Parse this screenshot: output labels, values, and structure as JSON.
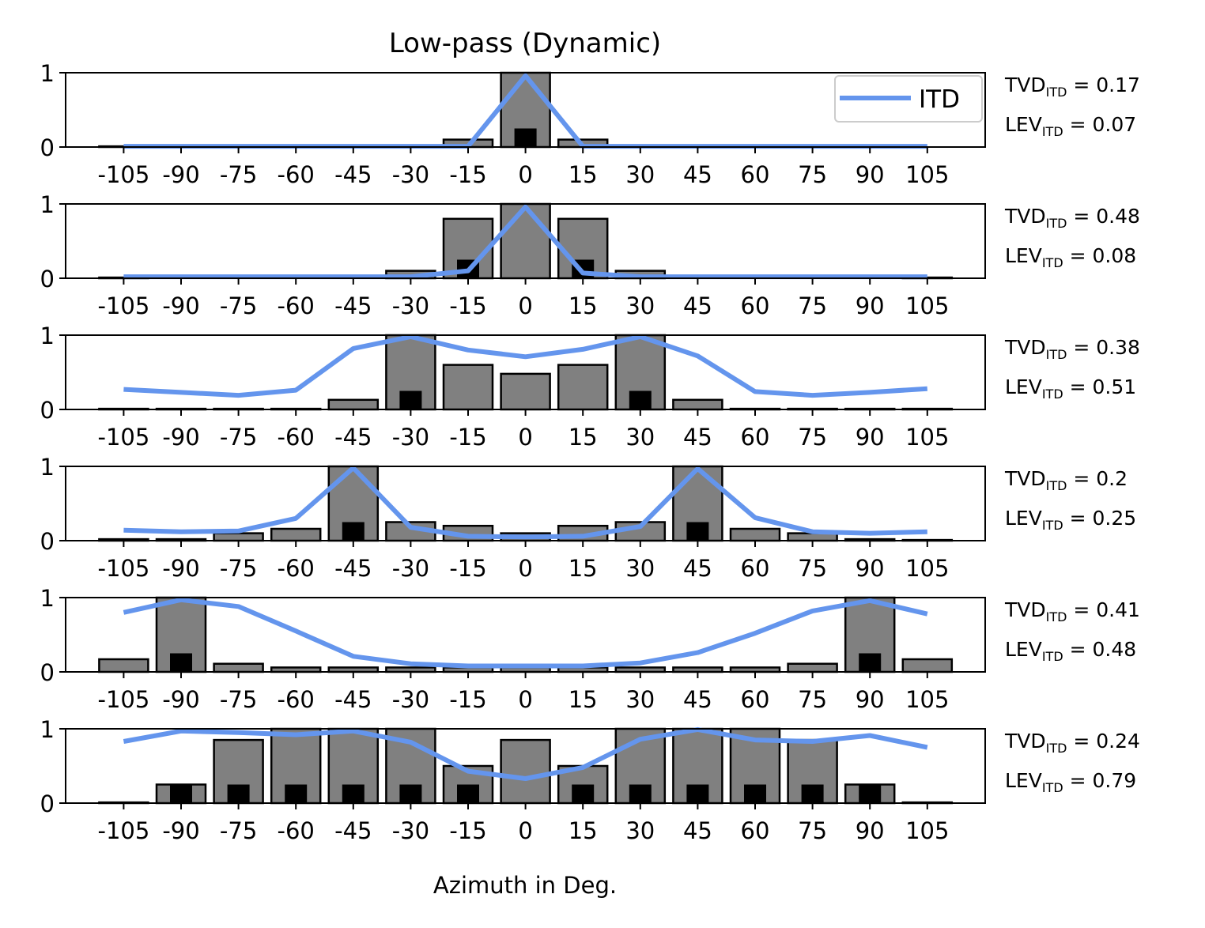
{
  "chart_data": {
    "type": "bar",
    "title": "Low-pass (Dynamic)",
    "xlabel": "Azimuth in Deg.",
    "ylabel": "",
    "ylim": [
      0,
      1
    ],
    "yticks": [
      "0",
      "1"
    ],
    "categories": [
      "-105",
      "-90",
      "-75",
      "-60",
      "-45",
      "-30",
      "-15",
      "0",
      "15",
      "30",
      "45",
      "60",
      "75",
      "90",
      "105"
    ],
    "legend": {
      "entries": [
        "ITD"
      ],
      "placement": "top-right",
      "color": "#6495ED"
    },
    "colors": {
      "bar": "#808080",
      "bar_edge": "#000000",
      "marker": "#000000",
      "line": "#6495ED"
    },
    "panels": [
      {
        "bars": [
          0.01,
          0,
          0,
          0,
          0,
          0,
          0.1,
          1.0,
          0.1,
          0,
          0,
          0,
          0,
          0,
          0
        ],
        "markers": [
          0,
          0,
          0,
          0,
          0,
          0,
          0,
          0.25,
          0,
          0,
          0,
          0,
          0,
          0,
          0
        ],
        "line": [
          0.01,
          0.01,
          0.01,
          0.01,
          0.01,
          0.01,
          0.01,
          0.96,
          0.01,
          0.01,
          0.01,
          0.01,
          0.01,
          0.01,
          0.01
        ],
        "tvd": "0.17",
        "lev": "0.07"
      },
      {
        "bars": [
          0.01,
          0,
          0,
          0,
          0,
          0.1,
          0.8,
          1.0,
          0.8,
          0.1,
          0,
          0,
          0,
          0,
          0.01
        ],
        "markers": [
          0,
          0,
          0,
          0,
          0,
          0,
          0.25,
          0,
          0.25,
          0,
          0,
          0,
          0,
          0,
          0
        ],
        "line": [
          0.02,
          0.02,
          0.02,
          0.02,
          0.02,
          0.02,
          0.1,
          0.96,
          0.07,
          0.02,
          0.02,
          0.02,
          0.02,
          0.02,
          0.02
        ],
        "tvd": "0.48",
        "lev": "0.08"
      },
      {
        "bars": [
          0.01,
          0.01,
          0.01,
          0.01,
          0.13,
          1.0,
          0.6,
          0.48,
          0.6,
          1.0,
          0.13,
          0.01,
          0.01,
          0.01,
          0.01
        ],
        "markers": [
          0,
          0,
          0,
          0,
          0,
          0.25,
          0,
          0,
          0,
          0.25,
          0,
          0,
          0,
          0,
          0
        ],
        "line": [
          0.27,
          0.23,
          0.19,
          0.26,
          0.82,
          0.98,
          0.8,
          0.71,
          0.81,
          0.98,
          0.72,
          0.24,
          0.19,
          0.23,
          0.28
        ],
        "tvd": "0.38",
        "lev": "0.51"
      },
      {
        "bars": [
          0.02,
          0.02,
          0.1,
          0.16,
          1.0,
          0.25,
          0.2,
          0.1,
          0.2,
          0.25,
          1.0,
          0.16,
          0.1,
          0.02,
          0.01
        ],
        "markers": [
          0,
          0,
          0,
          0,
          0.25,
          0,
          0,
          0,
          0,
          0,
          0.25,
          0,
          0,
          0,
          0
        ],
        "line": [
          0.14,
          0.12,
          0.13,
          0.3,
          0.98,
          0.18,
          0.06,
          0.05,
          0.06,
          0.19,
          0.97,
          0.31,
          0.12,
          0.1,
          0.12
        ],
        "tvd": "0.2",
        "lev": "0.25"
      },
      {
        "bars": [
          0.17,
          1.0,
          0.11,
          0.06,
          0.06,
          0.06,
          0.06,
          0.06,
          0.06,
          0.06,
          0.06,
          0.06,
          0.11,
          1.0,
          0.17
        ],
        "markers": [
          0,
          0.25,
          0,
          0,
          0,
          0,
          0,
          0,
          0,
          0,
          0,
          0,
          0,
          0.25,
          0
        ],
        "line": [
          0.8,
          0.97,
          0.88,
          0.55,
          0.21,
          0.11,
          0.08,
          0.08,
          0.08,
          0.12,
          0.26,
          0.52,
          0.82,
          0.96,
          0.78
        ],
        "tvd": "0.41",
        "lev": "0.48"
      },
      {
        "bars": [
          0.01,
          0.25,
          0.85,
          1.0,
          1.0,
          1.0,
          0.5,
          0.85,
          0.5,
          1.0,
          1.0,
          1.0,
          0.85,
          0.25,
          0.01
        ],
        "markers": [
          0,
          0.25,
          0.25,
          0.25,
          0.25,
          0.25,
          0.25,
          0,
          0.25,
          0.25,
          0.25,
          0.25,
          0.25,
          0.25,
          0
        ],
        "line": [
          0.83,
          0.97,
          0.95,
          0.92,
          0.97,
          0.82,
          0.43,
          0.33,
          0.48,
          0.86,
          0.99,
          0.85,
          0.83,
          0.91,
          0.75
        ],
        "tvd": "0.24",
        "lev": "0.79"
      }
    ]
  }
}
